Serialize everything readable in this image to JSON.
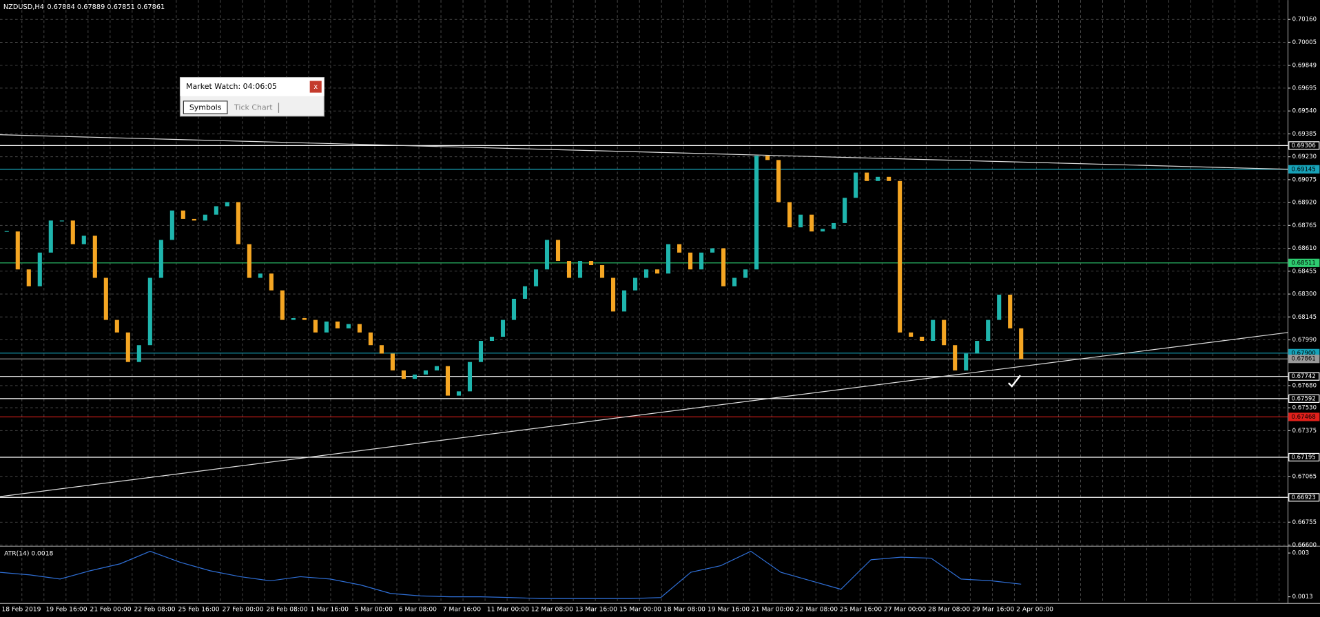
{
  "header": {
    "symbol": "NZDUSD,H4",
    "ohlc": "0.67884 0.67889 0.67851 0.67861"
  },
  "market_watch": {
    "title": "Market Watch: 04:06:05",
    "close": "x",
    "tabs": [
      "Symbols",
      "Tick Chart"
    ]
  },
  "chart_data": {
    "type": "candlestick",
    "up_color": "#1fb5ad",
    "down_color": "#f5a623",
    "closes": [
      0.68724,
      0.68467,
      0.68353,
      0.68581,
      0.68798,
      0.68798,
      0.68638,
      0.68695,
      0.6841,
      0.68125,
      0.6804,
      0.6784,
      0.67954,
      0.6841,
      0.68667,
      0.68866,
      0.68809,
      0.68798,
      0.68838,
      0.68895,
      0.68923,
      0.68638,
      0.6841,
      0.68439,
      0.68325,
      0.68125,
      0.68137,
      0.68125,
      0.6804,
      0.68114,
      0.68068,
      0.68097,
      0.6804,
      0.67954,
      0.67897,
      0.67783,
      0.67726,
      0.67755,
      0.67783,
      0.67812,
      0.67612,
      0.67641,
      0.6784,
      0.67983,
      0.68011,
      0.68125,
      0.68268,
      0.68353,
      0.68467,
      0.68667,
      0.68524,
      0.6841,
      0.68524,
      0.68496,
      0.6841,
      0.68182,
      0.68325,
      0.6841,
      0.68467,
      0.68439,
      0.68638,
      0.68581,
      0.68467,
      0.68581,
      0.6861,
      0.68353,
      0.6841,
      0.68467,
      0.69237,
      0.69208,
      0.68923,
      0.68752,
      0.68838,
      0.68724,
      0.68741,
      0.68781,
      0.68952,
      0.69123,
      0.69066,
      0.69094,
      0.69066,
      0.6804,
      0.68011,
      0.67983,
      0.68125,
      0.67954,
      0.67783,
      0.67897,
      0.67983,
      0.68125,
      0.68296,
      0.68068,
      0.67861
    ],
    "ylim": [
      0.66598,
      0.70291
    ],
    "yticks": [
      {
        "value": 0.7016,
        "label": "0.70160"
      },
      {
        "value": 0.70005,
        "label": "0.70005"
      },
      0.69849,
      0.69695,
      {
        "value": 0.6954,
        "label": "0.69540"
      },
      0.69385,
      {
        "value": 0.6923,
        "label": "0.69230"
      },
      0.69075,
      {
        "value": 0.6892,
        "label": "0.68920"
      },
      0.68765,
      {
        "value": 0.6861,
        "label": "0.68610"
      },
      0.68455,
      {
        "value": 0.683,
        "label": "0.68300"
      },
      0.68145,
      {
        "value": 0.6799,
        "label": "0.67990"
      },
      {
        "value": 0.6768,
        "label": "0.67680"
      },
      {
        "value": 0.6753,
        "label": "0.67530"
      },
      0.67375,
      0.67065,
      0.66755,
      {
        "value": 0.666,
        "label": "0.66600"
      }
    ],
    "levels": [
      {
        "value": 0.69306,
        "color": "#ffffff"
      },
      {
        "value": 0.69145,
        "color": "#17a2b8"
      },
      {
        "value": 0.68511,
        "color": "#2ecc71"
      },
      {
        "value": 0.679,
        "label": "0.67900",
        "color": "#17a2b8"
      },
      {
        "value": 0.67861,
        "color": "#9a9a9a"
      },
      {
        "value": 0.67742,
        "color": "#ffffff"
      },
      {
        "value": 0.67592,
        "color": "#ffffff"
      },
      {
        "value": 0.67468,
        "color": "#e0201b"
      },
      {
        "value": 0.67195,
        "color": "#ffffff"
      },
      {
        "value": 0.66923,
        "color": "#ffffff"
      }
    ],
    "x_labels": [
      "18 Feb 2019",
      "19 Feb 16:00",
      "21 Feb 00:00",
      "22 Feb 08:00",
      "25 Feb 16:00",
      "27 Feb 00:00",
      "28 Feb 08:00",
      "1 Mar 16:00",
      "5 Mar 00:00",
      "6 Mar 08:00",
      "7 Mar 16:00",
      "11 Mar 00:00",
      "12 Mar 08:00",
      "13 Mar 16:00",
      "15 Mar 00:00",
      "18 Mar 08:00",
      "19 Mar 16:00",
      "21 Mar 00:00",
      "22 Mar 08:00",
      "25 Mar 16:00",
      "27 Mar 00:00",
      "28 Mar 08:00",
      "29 Mar 16:00",
      "2 Apr 00:00"
    ],
    "atr": {
      "label": "ATR(14) 0.0018",
      "color": "#2f6fd6",
      "ylim": [
        0.00104,
        0.0032
      ],
      "yticks": [
        0.003,
        0.0013
      ],
      "values": [
        0.00225,
        0.00215,
        0.00199,
        0.00231,
        0.00258,
        0.00307,
        0.00264,
        0.00231,
        0.00208,
        0.00192,
        0.00208,
        0.00199,
        0.00176,
        0.00143,
        0.00133,
        0.0013,
        0.0013,
        0.00127,
        0.00123,
        0.00123,
        0.00123,
        0.00123,
        0.00127,
        0.00225,
        0.00251,
        0.00307,
        0.00225,
        0.00192,
        0.00159,
        0.00274,
        0.00284,
        0.0028,
        0.00199,
        0.00192,
        0.00179
      ]
    }
  }
}
